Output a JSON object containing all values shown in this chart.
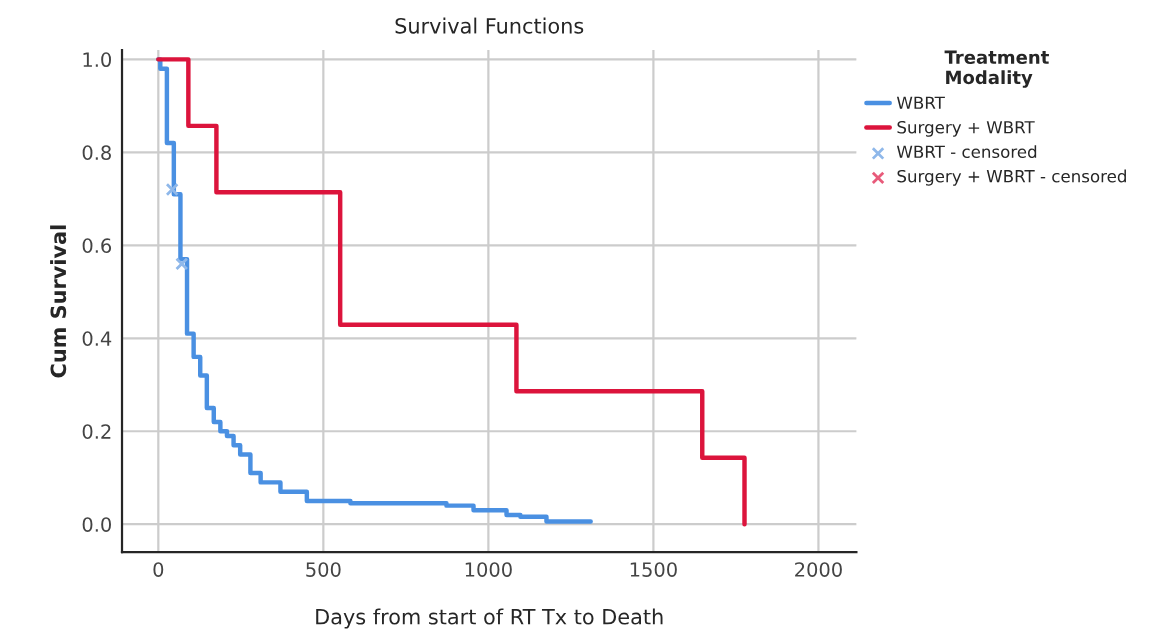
{
  "chart_data": {
    "type": "step",
    "title": "Survival Functions",
    "xlabel": "Days from start of RT Tx to Death",
    "ylabel": "Cum Survival",
    "legend_title": "Treatment\nModality",
    "series": [
      {
        "name": "WBRT",
        "color": "#4a90e2",
        "x": [
          0,
          6,
          26,
          47,
          67,
          87,
          107,
          127,
          147,
          168,
          188,
          208,
          228,
          248,
          279,
          310,
          370,
          450,
          582,
          873,
          955,
          1055,
          1097,
          1176,
          1310
        ],
        "values": [
          1.0,
          0.98,
          0.82,
          0.71,
          0.57,
          0.41,
          0.36,
          0.32,
          0.25,
          0.22,
          0.2,
          0.19,
          0.17,
          0.15,
          0.11,
          0.09,
          0.07,
          0.05,
          0.045,
          0.04,
          0.03,
          0.02,
          0.016,
          0.006,
          0.006
        ]
      },
      {
        "name": "Surgery + WBRT",
        "color": "#dc143c",
        "x": [
          0,
          91,
          176,
          551,
          1085,
          1648,
          1776
        ],
        "values": [
          1.0,
          0.857,
          0.714,
          0.429,
          0.286,
          0.143,
          0.0
        ]
      },
      {
        "name": "WBRT - censored",
        "type": "scatter",
        "marker": "cross",
        "color": "#8fb8ea",
        "x": [
          42,
          71
        ],
        "values": [
          0.72,
          0.56
        ]
      },
      {
        "name": "Surgery + WBRT - censored",
        "type": "scatter",
        "marker": "cross",
        "color": "#e85a7a"
      }
    ],
    "xlim": [
      -110,
      2115
    ],
    "ylim": [
      -0.06,
      1.02
    ],
    "xticks": [
      0,
      500,
      1000,
      1500,
      2000
    ],
    "yticks": [
      {
        "value": 0,
        "label": "0.0"
      },
      {
        "value": 0.2,
        "label": "0.2"
      },
      {
        "value": 0.4,
        "label": "0.4"
      },
      {
        "value": 0.6,
        "label": "0.6"
      },
      {
        "value": 0.8,
        "label": "0.8"
      },
      {
        "value": 1.0,
        "label": "1.0"
      }
    ],
    "grid": true,
    "legend": "top right"
  }
}
